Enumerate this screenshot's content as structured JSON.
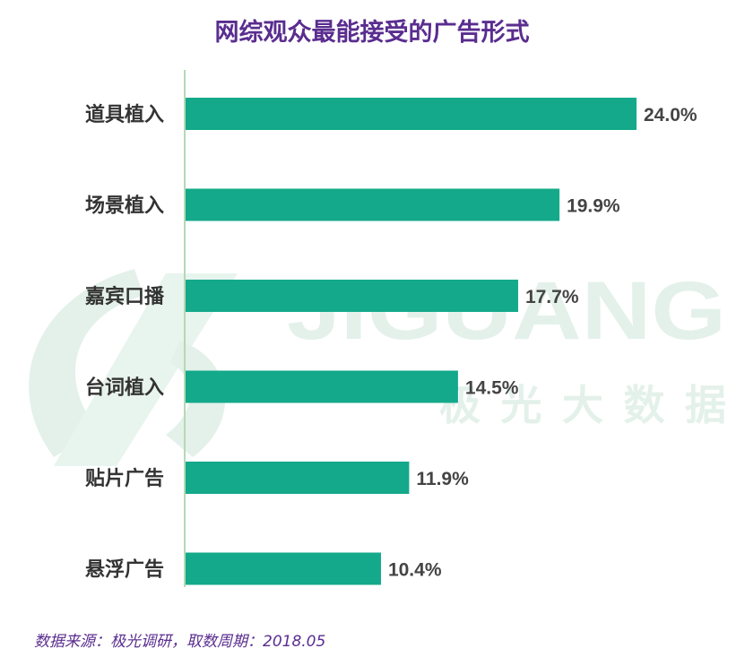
{
  "chart_data": {
    "type": "bar",
    "orientation": "horizontal",
    "title": "网综观众最能接受的广告形式",
    "categories": [
      "道具植入",
      "场景植入",
      "嘉宾口播",
      "台词植入",
      "贴片广告",
      "悬浮广告"
    ],
    "values": [
      24.0,
      19.9,
      17.7,
      14.5,
      11.9,
      10.4
    ],
    "value_labels": [
      "24.0%",
      "19.9%",
      "17.7%",
      "14.5%",
      "11.9%",
      "10.4%"
    ],
    "xlim": [
      0,
      24.0
    ],
    "grid": false,
    "legend": "none",
    "source_note": "数据来源：极光调研，取数周期：2018.05"
  },
  "watermark": {
    "logo_text": "JIGUANG",
    "sub_text": "极光大数据"
  },
  "colors": {
    "bar": "#13a98a",
    "title": "#5a2d8f",
    "axis": "#b5d9b5",
    "watermark": "#e3f1ea"
  }
}
